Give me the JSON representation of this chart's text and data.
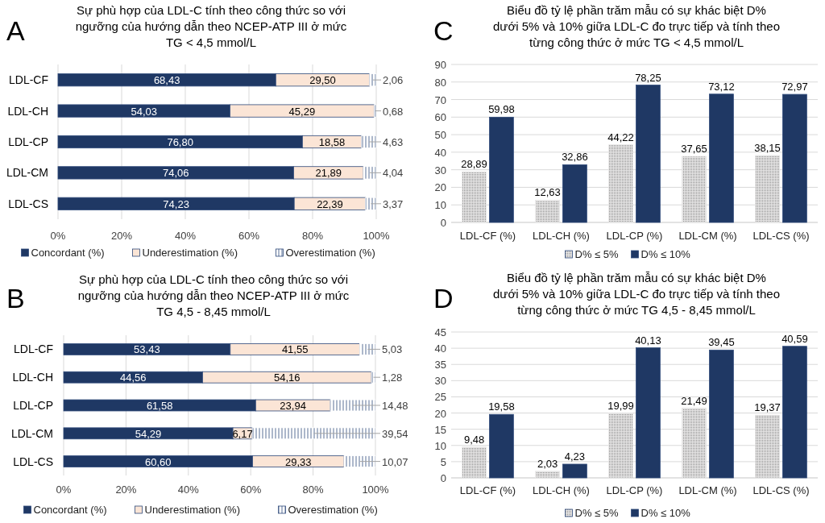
{
  "chart_data": [
    {
      "type": "bar",
      "orientation": "horizontal",
      "stacked": true,
      "title": "Sự phù hợp của LDL-C tính theo công thức so với\nngưỡng của hướng dẫn theo NCEP-ATP III ở mức\nTG < 4,5 mmol/L",
      "annotations": [
        "A"
      ],
      "categories": [
        "LDL-CF",
        "LDL-CH",
        "LDL-CP",
        "LDL-CM",
        "LDL-CS"
      ],
      "series": [
        {
          "name": "Concordant (%)",
          "color": "#1f3864",
          "values": [
            68.43,
            54.03,
            76.8,
            74.06,
            74.23
          ],
          "value_labels": [
            "68,43",
            "54,03",
            "76,80",
            "74,06",
            "74,23"
          ]
        },
        {
          "name": "Underestimation (%)",
          "color": "#fbe5d6",
          "values": [
            29.5,
            45.29,
            18.58,
            21.89,
            22.39
          ],
          "value_labels": [
            "29,50",
            "45,29",
            "18,58",
            "21,89",
            "22,39"
          ]
        },
        {
          "name": "Overestimation (%)",
          "color": "#ffffff",
          "values": [
            2.06,
            0.68,
            4.63,
            4.04,
            3.37
          ],
          "value_labels": [
            "2,06",
            "0,68",
            "4,63",
            "4,04",
            "3,37"
          ]
        }
      ],
      "xlim": [
        0,
        100
      ],
      "xticks": [
        {
          "value": 0,
          "label": "0%"
        },
        {
          "value": 20,
          "label": "20%"
        },
        {
          "value": 40,
          "label": "40%"
        },
        {
          "value": 60,
          "label": "60%"
        },
        {
          "value": 80,
          "label": "80%"
        },
        {
          "value": 100,
          "label": "100%"
        }
      ],
      "grid": "x",
      "legend": "bottom"
    },
    {
      "type": "bar",
      "title": "Biểu đồ tỷ lệ phần trăm mẫu có sự khác biệt D%\ndưới 5% và 10% giữa LDL-C đo trực tiếp và tính theo\ntừng công thức ở mức TG < 4,5 mmol/L",
      "annotations": [
        "C"
      ],
      "categories": [
        "LDL-CF (%)",
        "LDL-CH (%)",
        "LDL-CP (%)",
        "LDL-CM (%)",
        "LDL-CS (%)"
      ],
      "series": [
        {
          "name": "D% ≤ 5%",
          "color": "#e7e6e6",
          "values": [
            28.89,
            12.63,
            44.22,
            37.65,
            38.15
          ],
          "value_labels": [
            "28,89",
            "12,63",
            "44,22",
            "37,65",
            "38,15"
          ]
        },
        {
          "name": "D% ≤ 10%",
          "color": "#1f3864",
          "values": [
            59.98,
            32.86,
            78.25,
            73.12,
            72.97
          ],
          "value_labels": [
            "59,98",
            "32,86",
            "78,25",
            "73,12",
            "72,97"
          ]
        }
      ],
      "ylim": [
        0,
        90
      ],
      "yticks": [
        0,
        10,
        20,
        30,
        40,
        50,
        60,
        70,
        80,
        90
      ],
      "grid": "y",
      "legend": "bottom"
    },
    {
      "type": "bar",
      "orientation": "horizontal",
      "stacked": true,
      "title": "Sự phù hợp của LDL-C tính theo công thức so với\nngưỡng của hướng dẫn theo NCEP-ATP III ở mức\nTG 4,5 - 8,45 mmol/L",
      "annotations": [
        "B"
      ],
      "categories": [
        "LDL-CF",
        "LDL-CH",
        "LDL-CP",
        "LDL-CM",
        "LDL-CS"
      ],
      "series": [
        {
          "name": "Concordant (%)",
          "color": "#1f3864",
          "values": [
            53.43,
            44.56,
            61.58,
            54.29,
            60.6
          ],
          "value_labels": [
            "53,43",
            "44,56",
            "61,58",
            "54,29",
            "60,60"
          ]
        },
        {
          "name": "Underestimation (%)",
          "color": "#fbe5d6",
          "values": [
            41.55,
            54.16,
            23.94,
            6.17,
            29.33
          ],
          "value_labels": [
            "41,55",
            "54,16",
            "23,94",
            "6,17",
            "29,33"
          ]
        },
        {
          "name": "Overestimation (%)",
          "color": "#ffffff",
          "values": [
            5.03,
            1.28,
            14.48,
            39.54,
            10.07
          ],
          "value_labels": [
            "5,03",
            "1,28",
            "14,48",
            "39,54",
            "10,07"
          ]
        }
      ],
      "xlim": [
        0,
        100
      ],
      "xticks": [
        {
          "value": 0,
          "label": "0%"
        },
        {
          "value": 20,
          "label": "20%"
        },
        {
          "value": 40,
          "label": "40%"
        },
        {
          "value": 60,
          "label": "60%"
        },
        {
          "value": 80,
          "label": "80%"
        },
        {
          "value": 100,
          "label": "100%"
        }
      ],
      "grid": "x",
      "legend": "bottom"
    },
    {
      "type": "bar",
      "title": "Biểu đồ tỷ lệ phần trăm mẫu có sự khác biệt D%\ndưới 5% và 10% giữa LDL-C đo trực tiếp và tính theo\ntừng công thức ở mức TG 4,5 - 8,45 mmol/L",
      "annotations": [
        "D"
      ],
      "categories": [
        "LDL-CF (%)",
        "LDL-CH (%)",
        "LDL-CP (%)",
        "LDL-CM (%)",
        "LDL-CS (%)"
      ],
      "series": [
        {
          "name": "D% ≤ 5%",
          "color": "#e7e6e6",
          "values": [
            9.48,
            2.03,
            19.99,
            21.49,
            19.37
          ],
          "value_labels": [
            "9,48",
            "2,03",
            "19,99",
            "21,49",
            "19,37"
          ]
        },
        {
          "name": "D% ≤ 10%",
          "color": "#1f3864",
          "values": [
            19.58,
            4.23,
            40.13,
            39.45,
            40.59
          ],
          "value_labels": [
            "19,58",
            "4,23",
            "40,13",
            "39,45",
            "40,59"
          ]
        }
      ],
      "ylim": [
        0,
        45
      ],
      "yticks": [
        0,
        5,
        10,
        15,
        20,
        25,
        30,
        35,
        40,
        45
      ],
      "grid": "y",
      "legend": "bottom"
    }
  ]
}
